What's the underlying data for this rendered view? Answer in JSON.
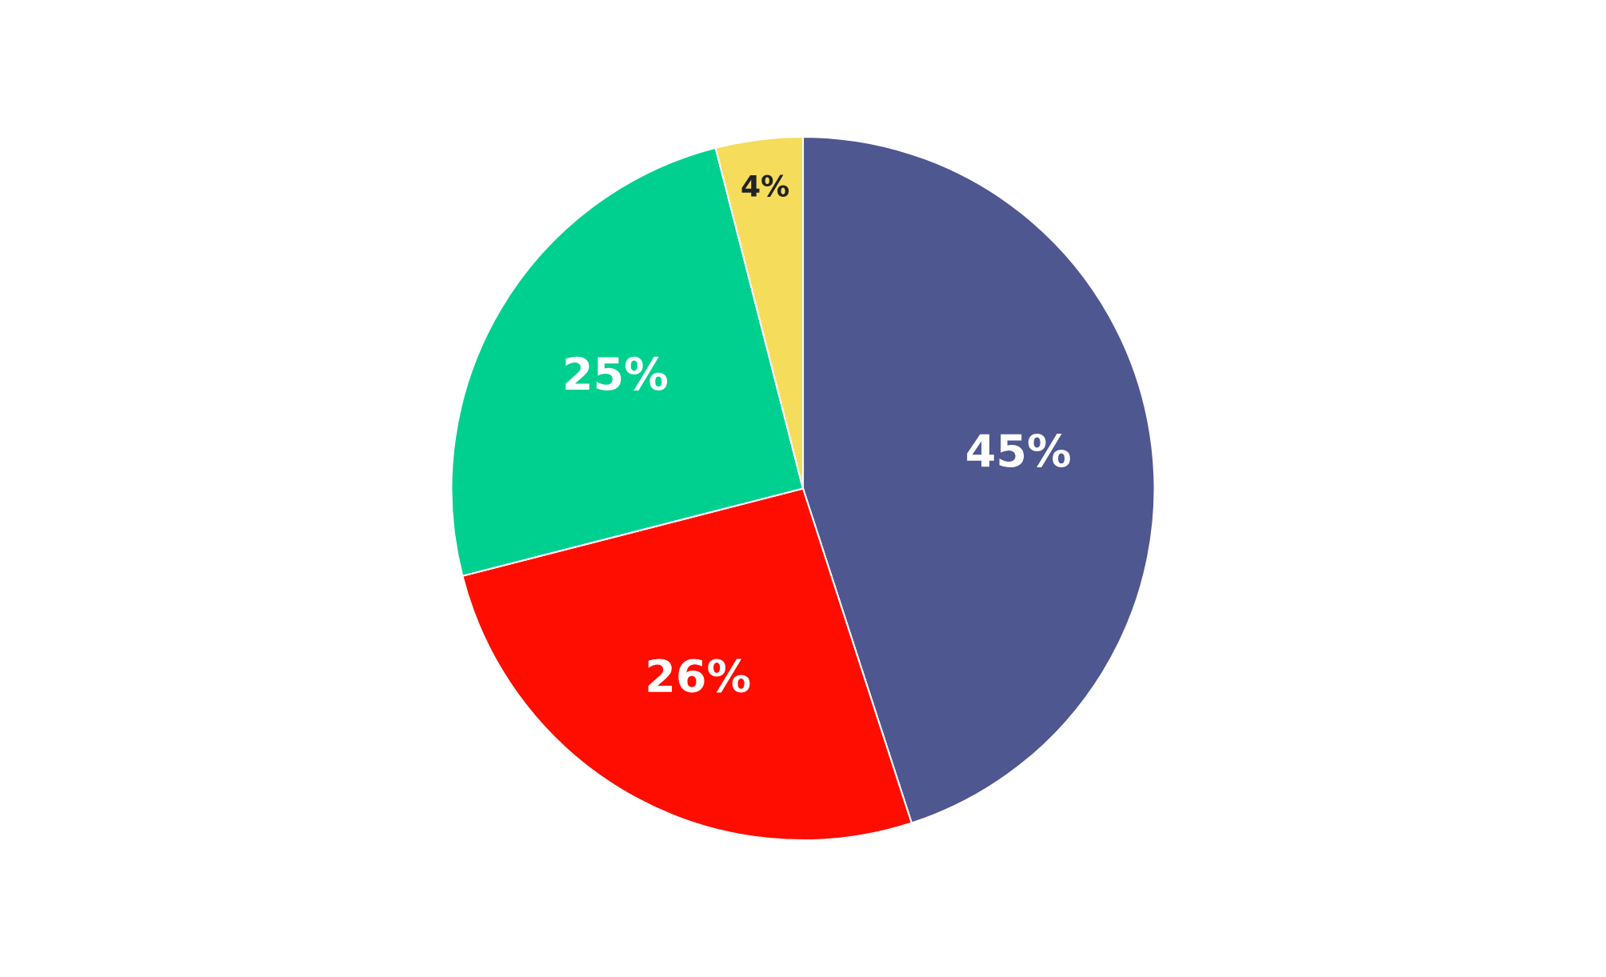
{
  "chart_data": {
    "type": "pie",
    "categories": [
      null,
      null,
      null,
      null
    ],
    "values": [
      45,
      26,
      25,
      4
    ],
    "colors": [
      "#4f5791",
      "#ff0d00",
      "#00d08f",
      "#f5dc5a"
    ],
    "value_labels": [
      "45%",
      "26%",
      "25%",
      "4%"
    ]
  }
}
